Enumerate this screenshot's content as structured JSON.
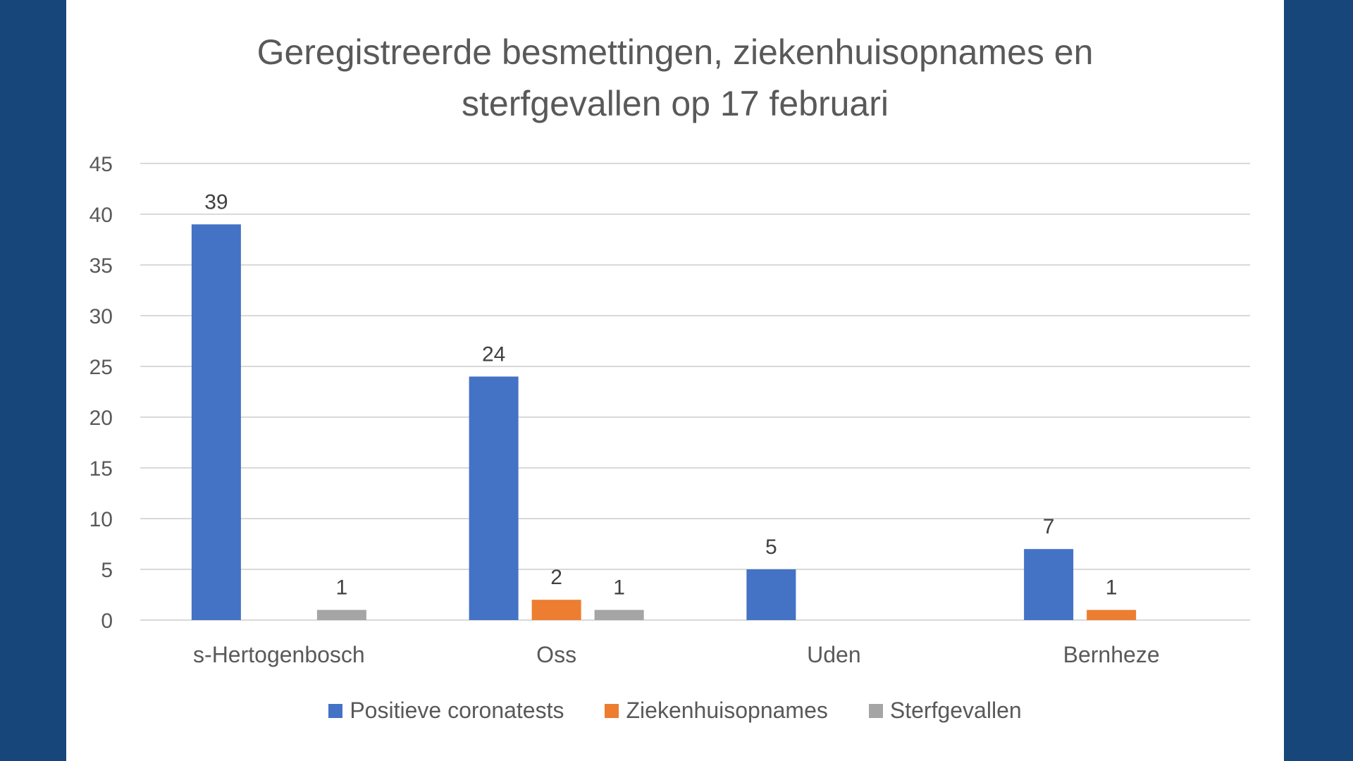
{
  "colors": {
    "background": "#17467a",
    "panel": "#ffffff",
    "text": "#595959",
    "grid": "#d9d9d9"
  },
  "chart_data": {
    "type": "bar",
    "title_lines": [
      "Geregistreerde besmettingen, ziekenhuisopnames en",
      "sterfgevallen op 17 februari"
    ],
    "categories": [
      "s-Hertogenbosch",
      "Oss",
      "Uden",
      "Bernheze"
    ],
    "series": [
      {
        "name": "Positieve coronatests",
        "color": "#4472c4",
        "values": [
          39,
          24,
          5,
          7
        ]
      },
      {
        "name": "Ziekenhuisopnames",
        "color": "#ed7d31",
        "values": [
          0,
          2,
          0,
          1
        ]
      },
      {
        "name": "Sterfgevallen",
        "color": "#a5a5a5",
        "values": [
          1,
          1,
          0,
          0
        ]
      }
    ],
    "ylim": [
      0,
      45
    ],
    "yticks": [
      0,
      5,
      10,
      15,
      20,
      25,
      30,
      35,
      40,
      45
    ],
    "grid": true,
    "legend_position": "bottom",
    "data_labels": true
  }
}
